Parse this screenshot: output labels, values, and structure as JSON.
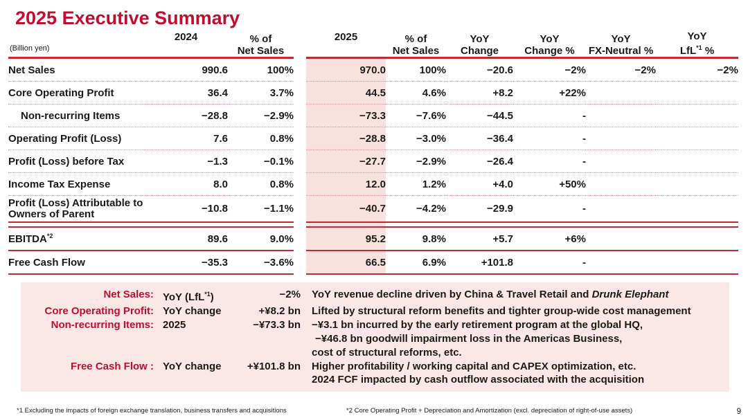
{
  "title": "2025 Executive Summary",
  "page_number": "9",
  "colors": {
    "accent_red": "#C30D2E",
    "line_red": "#BE2B33",
    "dotted_red": "#DC959D",
    "pink_column": "#F9E2DE",
    "pink_panel": "#FBE8E6",
    "text": "#1A1A1A"
  },
  "table": {
    "columns": [
      {
        "key": "label",
        "lines": [
          "(Billion yen)"
        ]
      },
      {
        "key": "v2024",
        "lines": [
          "2024"
        ]
      },
      {
        "key": "p2024",
        "lines": [
          "% of",
          "Net Sales"
        ]
      },
      {
        "key": "gap",
        "lines": []
      },
      {
        "key": "v2025",
        "lines": [
          "2025"
        ]
      },
      {
        "key": "p2025",
        "lines": [
          "% of",
          "Net Sales"
        ]
      },
      {
        "key": "yoy",
        "lines": [
          "YoY",
          "Change"
        ]
      },
      {
        "key": "yoyp",
        "lines": [
          "YoY",
          "Change %"
        ]
      },
      {
        "key": "fx",
        "lines": [
          "YoY",
          "FX-Neutral %"
        ]
      },
      {
        "key": "lfl",
        "lines": [
          "YoY",
          "LfL"
        ],
        "sup": "*1",
        "tail": " %"
      }
    ],
    "rows": [
      {
        "label": "Net Sales",
        "v2024": "990.6",
        "p2024": "100%",
        "v2025": "970.0",
        "p2025": "100%",
        "yoy": "−20.6",
        "yoyp": "−2%",
        "fx": "−2%",
        "lfl": "−2%",
        "sep": "dotted"
      },
      {
        "label": "Core Operating Profit",
        "v2024": "36.4",
        "p2024": "3.7%",
        "v2025": "44.5",
        "p2025": "4.6%",
        "yoy": "+8.2",
        "yoyp": "+22%",
        "sep": "dotted"
      },
      {
        "label": "Non-recurring Items",
        "indent": true,
        "v2024": "−28.8",
        "p2024": "−2.9%",
        "v2025": "−73.3",
        "p2025": "−7.6%",
        "yoy": "−44.5",
        "yoyp": "-",
        "sep": "dotted"
      },
      {
        "label": "Operating Profit (Loss)",
        "v2024": "7.6",
        "p2024": "0.8%",
        "v2025": "−28.8",
        "p2025": "−3.0%",
        "yoy": "−36.4",
        "yoyp": "-",
        "sep": "dotted"
      },
      {
        "label": "Profit (Loss) before Tax",
        "v2024": "−1.3",
        "p2024": "−0.1%",
        "v2025": "−27.7",
        "p2025": "−2.9%",
        "yoy": "−26.4",
        "yoyp": "-",
        "sep": "dotted"
      },
      {
        "label": "Income Tax Expense",
        "v2024": "8.0",
        "p2024": "0.8%",
        "v2025": "12.0",
        "p2025": "1.2%",
        "yoy": "+4.0",
        "yoyp": "+50%",
        "sep": "dotted"
      },
      {
        "label": "Profit (Loss) Attributable to Owners of Parent",
        "two_line": true,
        "v2024": "−10.8",
        "p2024": "−1.1%",
        "v2025": "−40.7",
        "p2025": "−4.2%",
        "yoy": "−29.9",
        "yoyp": "-",
        "sep": "double"
      },
      {
        "label": "EBITDA",
        "sup": "*2",
        "v2024": "89.6",
        "p2024": "9.0%",
        "v2025": "95.2",
        "p2025": "9.8%",
        "yoy": "+5.7",
        "yoyp": "+6%",
        "sep": "solid"
      },
      {
        "label": "Free Cash Flow",
        "v2024": "−35.3",
        "p2024": "−3.6%",
        "v2025": "66.5",
        "p2025": "6.9%",
        "yoy": "+101.8",
        "yoyp": "-",
        "sep": "solid"
      }
    ]
  },
  "summary": {
    "rows": [
      {
        "label": "Net Sales:",
        "metric": "YoY (LfL",
        "metric_sup": "*1",
        "metric_tail": ")",
        "value": "−2%",
        "note": "YoY revenue decline driven by China & Travel Retail and ",
        "note_italic": "Drunk Elephant"
      },
      {
        "label": "Core Operating Profit:",
        "metric": "YoY change",
        "value": "+¥8.2 bn",
        "note": "Lifted by structural reform benefits and tighter group-wide cost management"
      },
      {
        "label": "Non-recurring Items:",
        "metric": "2025",
        "value": "−¥73.3 bn",
        "note": "−¥3.1 bn incurred by the early retirement program at the global HQ,"
      },
      {
        "indent": true,
        "note": "−¥46.8 bn goodwill impairment loss in the Americas Business,"
      },
      {
        "note": "cost of structural reforms, etc."
      },
      {
        "label": "Free Cash Flow :",
        "metric": "YoY change",
        "value": "+¥101.8 bn",
        "note": "Higher profitability / working capital and CAPEX optimization, etc."
      },
      {
        "note": "2024 FCF impacted by cash outflow associated with the acquisition"
      }
    ]
  },
  "footnotes": {
    "note1": "*1 Excluding the impacts of foreign exchange translation, business transfers and acquisitions",
    "note2": "*2 Core Operating Profit + Depreciation and Amortization (excl. depreciation of right-of-use assets)"
  }
}
